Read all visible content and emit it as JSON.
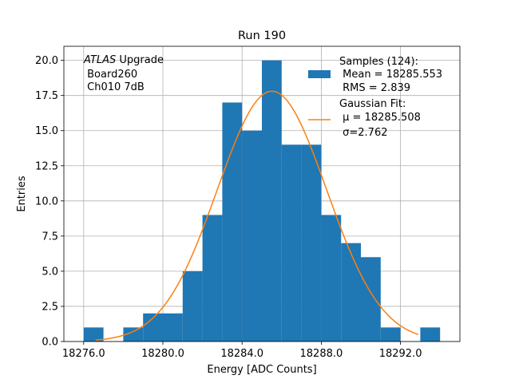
{
  "chart_data": {
    "type": "bar",
    "title": "Run 190",
    "xlabel": "Energy [ADC Counts]",
    "ylabel": "Entries",
    "xlim": [
      18275.0,
      18295.0
    ],
    "ylim": [
      0,
      21.0
    ],
    "grid": true,
    "bin_width": 1.0,
    "bins": [
      {
        "x": 18276.0,
        "value": 1
      },
      {
        "x": 18277.0,
        "value": 0
      },
      {
        "x": 18278.0,
        "value": 1
      },
      {
        "x": 18279.0,
        "value": 2
      },
      {
        "x": 18280.0,
        "value": 2
      },
      {
        "x": 18281.0,
        "value": 5
      },
      {
        "x": 18282.0,
        "value": 9
      },
      {
        "x": 18283.0,
        "value": 17
      },
      {
        "x": 18284.0,
        "value": 15
      },
      {
        "x": 18285.0,
        "value": 20
      },
      {
        "x": 18286.0,
        "value": 14
      },
      {
        "x": 18287.0,
        "value": 14
      },
      {
        "x": 18288.0,
        "value": 9
      },
      {
        "x": 18289.0,
        "value": 7
      },
      {
        "x": 18290.0,
        "value": 6
      },
      {
        "x": 18291.0,
        "value": 1
      },
      {
        "x": 18292.0,
        "value": 0
      },
      {
        "x": 18293.0,
        "value": 1
      }
    ],
    "x_ticks": [
      18276.0,
      18280.0,
      18284.0,
      18288.0,
      18292.0
    ],
    "x_tick_labels": [
      "18276.0",
      "18280.0",
      "18284.0",
      "18288.0",
      "18292.0"
    ],
    "y_ticks": [
      0.0,
      2.5,
      5.0,
      7.5,
      10.0,
      12.5,
      15.0,
      17.5,
      20.0
    ],
    "y_tick_labels": [
      "0.0",
      "2.5",
      "5.0",
      "7.5",
      "10.0",
      "12.5",
      "15.0",
      "17.5",
      "20.0"
    ],
    "fit": {
      "type": "gaussian",
      "mu": 18285.508,
      "sigma": 2.762,
      "amplitude": 17.8,
      "x_range": [
        18276.6,
        18292.9
      ]
    },
    "annotation": {
      "lines": [
        {
          "italic": "ATLAS",
          "text": " Upgrade"
        },
        {
          "italic": "",
          "text": " Board260"
        },
        {
          "italic": "",
          "text": " Ch010 7dB"
        }
      ]
    },
    "legend": {
      "position": "top-right",
      "entries": [
        {
          "lines": [
            "Samples (124):",
            " Mean = 18285.553",
            " RMS = 2.839"
          ],
          "kind": "patch"
        },
        {
          "lines": [
            "Gaussian Fit:",
            " μ = 18285.508",
            " σ=2.762"
          ],
          "kind": "line"
        }
      ]
    },
    "colors": {
      "bars": "#1f77b4",
      "fit": "#ff7f0e"
    }
  }
}
